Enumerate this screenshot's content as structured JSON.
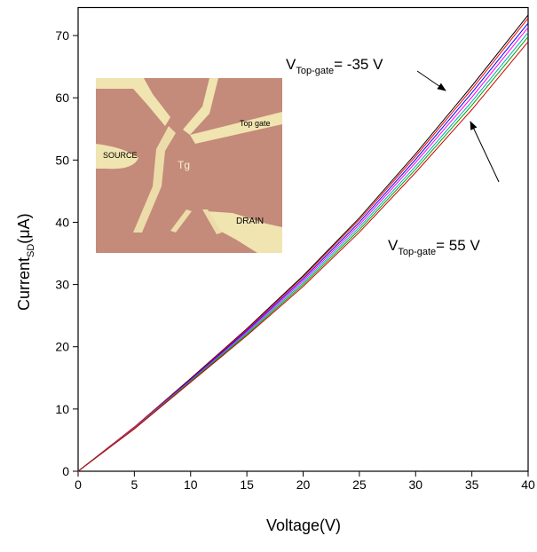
{
  "chart_data": {
    "type": "line",
    "x_label": "Voltage(V)",
    "y_label": {
      "main": "Current",
      "sub": "SD",
      "rest": "(μA)"
    },
    "x": [
      0,
      5,
      10,
      15,
      20,
      25,
      30,
      35,
      40
    ],
    "series": [
      {
        "color": "#000000",
        "values": [
          0,
          7.1,
          14.9,
          22.9,
          31.4,
          40.7,
          51.0,
          61.9,
          73.3
        ]
      },
      {
        "color": "#ff0000",
        "values": [
          0,
          7.1,
          14.8,
          22.8,
          31.2,
          40.4,
          50.6,
          61.4,
          72.8
        ]
      },
      {
        "color": "#0000ff",
        "values": [
          0,
          7.0,
          14.7,
          22.6,
          30.9,
          40.0,
          50.1,
          60.8,
          72.0
        ]
      },
      {
        "color": "#ff00ff",
        "values": [
          0,
          7.0,
          14.6,
          22.4,
          30.6,
          39.6,
          49.6,
          60.1,
          71.3
        ]
      },
      {
        "color": "#00aaaa",
        "values": [
          0,
          6.9,
          14.5,
          22.2,
          30.3,
          39.2,
          49.0,
          59.4,
          70.5
        ]
      },
      {
        "color": "#00a000",
        "values": [
          0,
          6.9,
          14.4,
          22.0,
          30.0,
          38.8,
          48.5,
          58.8,
          69.8
        ]
      },
      {
        "color": "#cc0000",
        "values": [
          0,
          6.8,
          14.3,
          21.8,
          29.7,
          38.4,
          48.0,
          58.1,
          69.0
        ]
      }
    ],
    "xlim": [
      0,
      40
    ],
    "xticks": [
      0,
      5,
      10,
      15,
      20,
      25,
      30,
      35,
      40
    ],
    "ylim": [
      0,
      74.5
    ],
    "yticks": [
      0,
      10,
      20,
      30,
      40,
      50,
      60,
      70
    ],
    "annotations": [
      {
        "main": "V",
        "sub": "Top-gate",
        "rest": "= -35 V"
      },
      {
        "main": "V",
        "sub": "Top-gate",
        "rest": "= 55 V"
      }
    ],
    "inset_labels": {
      "source": "SOURCE",
      "top_gate": "Top gate",
      "drain": "DRAIN",
      "gate_mark": "Tg"
    }
  }
}
